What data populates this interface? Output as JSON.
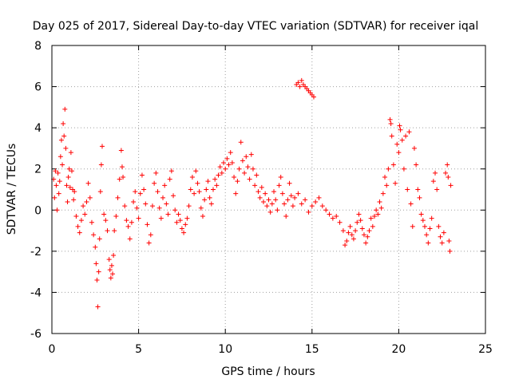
{
  "chart_data": {
    "type": "scatter",
    "title": "Day 025 of 2017, Sidereal Day-to-day VTEC variation (SDTVAR) for receiver iqal",
    "xlabel": "GPS time / hours",
    "ylabel": "SDTVAR / TECUs",
    "xlim": [
      0,
      25
    ],
    "ylim": [
      -6,
      8
    ],
    "xticks": [
      0,
      5,
      10,
      15,
      20,
      25
    ],
    "yticks": [
      -6,
      -4,
      -2,
      0,
      2,
      4,
      6,
      8
    ],
    "xtick_labels": [
      "0",
      "5",
      "10",
      "15",
      "20",
      "25"
    ],
    "ytick_labels": [
      "-6",
      "-4",
      "-2",
      "0",
      "2",
      "4",
      "6",
      "8"
    ],
    "grid": true,
    "marker": "+",
    "color": "#ff0000",
    "series": [
      {
        "name": "SDTVAR",
        "points": [
          [
            0.1,
            1.5
          ],
          [
            0.15,
            0.6
          ],
          [
            0.2,
            1.9
          ],
          [
            0.25,
            1.2
          ],
          [
            0.3,
            0.0
          ],
          [
            0.35,
            1.8
          ],
          [
            0.4,
            0.8
          ],
          [
            0.45,
            1.4
          ],
          [
            0.5,
            2.6
          ],
          [
            0.55,
            3.4
          ],
          [
            0.6,
            2.2
          ],
          [
            0.65,
            4.2
          ],
          [
            0.7,
            3.6
          ],
          [
            0.75,
            4.9
          ],
          [
            0.8,
            3.0
          ],
          [
            0.85,
            1.2
          ],
          [
            0.9,
            0.4
          ],
          [
            0.95,
            1.6
          ],
          [
            1.0,
            2.0
          ],
          [
            1.05,
            1.1
          ],
          [
            1.1,
            2.8
          ],
          [
            1.15,
            1.9
          ],
          [
            1.2,
            1.0
          ],
          [
            1.25,
            0.5
          ],
          [
            1.3,
            0.9
          ],
          [
            1.4,
            -0.3
          ],
          [
            1.5,
            -0.8
          ],
          [
            1.6,
            -1.1
          ],
          [
            1.7,
            -0.5
          ],
          [
            1.8,
            0.2
          ],
          [
            1.9,
            -0.2
          ],
          [
            2.0,
            0.4
          ],
          [
            2.1,
            1.3
          ],
          [
            2.2,
            0.6
          ],
          [
            2.3,
            -0.6
          ],
          [
            2.4,
            -1.2
          ],
          [
            2.5,
            -1.8
          ],
          [
            2.55,
            -2.6
          ],
          [
            2.6,
            -3.4
          ],
          [
            2.65,
            -4.7
          ],
          [
            2.7,
            -3.0
          ],
          [
            2.75,
            -1.4
          ],
          [
            2.8,
            0.9
          ],
          [
            2.85,
            2.2
          ],
          [
            2.9,
            3.1
          ],
          [
            3.0,
            -0.2
          ],
          [
            3.1,
            -0.5
          ],
          [
            3.2,
            -1.0
          ],
          [
            3.3,
            -2.4
          ],
          [
            3.35,
            -2.9
          ],
          [
            3.4,
            -3.3
          ],
          [
            3.45,
            -2.7
          ],
          [
            3.5,
            -3.1
          ],
          [
            3.55,
            -2.2
          ],
          [
            3.6,
            -1.0
          ],
          [
            3.7,
            -0.3
          ],
          [
            3.8,
            0.6
          ],
          [
            3.9,
            1.5
          ],
          [
            4.0,
            2.9
          ],
          [
            4.05,
            2.1
          ],
          [
            4.1,
            1.6
          ],
          [
            4.2,
            0.2
          ],
          [
            4.3,
            -0.5
          ],
          [
            4.4,
            -0.8
          ],
          [
            4.5,
            -1.4
          ],
          [
            4.6,
            -0.6
          ],
          [
            4.7,
            0.4
          ],
          [
            4.8,
            0.9
          ],
          [
            4.9,
            0.1
          ],
          [
            5.0,
            -0.4
          ],
          [
            5.1,
            0.8
          ],
          [
            5.2,
            1.7
          ],
          [
            5.3,
            1.0
          ],
          [
            5.4,
            0.3
          ],
          [
            5.5,
            -0.7
          ],
          [
            5.6,
            -1.6
          ],
          [
            5.7,
            -1.2
          ],
          [
            5.8,
            0.2
          ],
          [
            5.9,
            1.3
          ],
          [
            6.0,
            1.8
          ],
          [
            6.1,
            0.9
          ],
          [
            6.2,
            0.1
          ],
          [
            6.3,
            -0.4
          ],
          [
            6.4,
            0.6
          ],
          [
            6.5,
            1.2
          ],
          [
            6.6,
            0.3
          ],
          [
            6.7,
            -0.2
          ],
          [
            6.8,
            1.5
          ],
          [
            6.9,
            1.9
          ],
          [
            7.0,
            0.7
          ],
          [
            7.1,
            0.0
          ],
          [
            7.2,
            -0.6
          ],
          [
            7.3,
            -0.2
          ],
          [
            7.4,
            -0.5
          ],
          [
            7.5,
            -0.9
          ],
          [
            7.6,
            -1.1
          ],
          [
            7.7,
            -0.7
          ],
          [
            7.8,
            -0.4
          ],
          [
            7.9,
            0.2
          ],
          [
            8.0,
            1.0
          ],
          [
            8.1,
            1.6
          ],
          [
            8.2,
            0.8
          ],
          [
            8.3,
            1.9
          ],
          [
            8.4,
            1.3
          ],
          [
            8.5,
            0.9
          ],
          [
            8.6,
            0.1
          ],
          [
            8.7,
            -0.3
          ],
          [
            8.8,
            0.5
          ],
          [
            8.9,
            1.0
          ],
          [
            9.0,
            1.4
          ],
          [
            9.1,
            0.6
          ],
          [
            9.2,
            0.3
          ],
          [
            9.3,
            1.0
          ],
          [
            9.4,
            1.5
          ],
          [
            9.5,
            1.2
          ],
          [
            9.6,
            1.7
          ],
          [
            9.7,
            2.1
          ],
          [
            9.8,
            1.8
          ],
          [
            9.9,
            2.3
          ],
          [
            10.0,
            2.0
          ],
          [
            10.1,
            2.5
          ],
          [
            10.2,
            2.2
          ],
          [
            10.3,
            2.8
          ],
          [
            10.4,
            2.3
          ],
          [
            10.5,
            1.6
          ],
          [
            10.6,
            0.8
          ],
          [
            10.7,
            1.4
          ],
          [
            10.8,
            2.0
          ],
          [
            10.9,
            3.3
          ],
          [
            11.0,
            2.4
          ],
          [
            11.1,
            1.8
          ],
          [
            11.2,
            2.6
          ],
          [
            11.3,
            2.1
          ],
          [
            11.4,
            1.5
          ],
          [
            11.5,
            2.7
          ],
          [
            11.6,
            2.0
          ],
          [
            11.7,
            1.2
          ],
          [
            11.8,
            1.7
          ],
          [
            11.9,
            0.9
          ],
          [
            12.0,
            0.6
          ],
          [
            12.1,
            1.1
          ],
          [
            12.2,
            0.4
          ],
          [
            12.3,
            0.8
          ],
          [
            12.4,
            0.2
          ],
          [
            12.5,
            0.5
          ],
          [
            12.6,
            -0.1
          ],
          [
            12.7,
            0.3
          ],
          [
            12.8,
            0.9
          ],
          [
            12.9,
            0.5
          ],
          [
            13.0,
            0.0
          ],
          [
            13.1,
            1.2
          ],
          [
            13.2,
            1.6
          ],
          [
            13.3,
            0.8
          ],
          [
            13.4,
            0.3
          ],
          [
            13.5,
            -0.3
          ],
          [
            13.6,
            0.5
          ],
          [
            13.7,
            1.3
          ],
          [
            13.8,
            0.7
          ],
          [
            13.9,
            0.2
          ],
          [
            14.0,
            0.6
          ],
          [
            14.1,
            6.1
          ],
          [
            14.2,
            6.2
          ],
          [
            14.3,
            6.0
          ],
          [
            14.4,
            6.3
          ],
          [
            14.5,
            6.1
          ],
          [
            14.6,
            6.0
          ],
          [
            14.7,
            5.9
          ],
          [
            14.8,
            5.8
          ],
          [
            14.9,
            5.7
          ],
          [
            15.0,
            5.6
          ],
          [
            15.1,
            5.5
          ],
          [
            14.2,
            0.8
          ],
          [
            14.4,
            0.3
          ],
          [
            14.6,
            0.5
          ],
          [
            14.8,
            -0.1
          ],
          [
            15.0,
            0.2
          ],
          [
            15.2,
            0.4
          ],
          [
            15.4,
            0.6
          ],
          [
            15.6,
            0.2
          ],
          [
            15.8,
            0.0
          ],
          [
            16.0,
            -0.2
          ],
          [
            16.2,
            -0.4
          ],
          [
            16.4,
            -0.3
          ],
          [
            16.6,
            -0.6
          ],
          [
            16.8,
            -1.0
          ],
          [
            16.9,
            -1.7
          ],
          [
            17.0,
            -1.5
          ],
          [
            17.1,
            -1.1
          ],
          [
            17.2,
            -0.8
          ],
          [
            17.3,
            -1.2
          ],
          [
            17.4,
            -1.4
          ],
          [
            17.5,
            -1.0
          ],
          [
            17.6,
            -0.6
          ],
          [
            17.7,
            -0.2
          ],
          [
            17.8,
            -0.5
          ],
          [
            17.9,
            -0.9
          ],
          [
            18.0,
            -1.2
          ],
          [
            18.1,
            -1.6
          ],
          [
            18.2,
            -1.3
          ],
          [
            18.3,
            -1.0
          ],
          [
            18.4,
            -0.4
          ],
          [
            18.5,
            -0.8
          ],
          [
            18.6,
            -0.3
          ],
          [
            18.7,
            0.0
          ],
          [
            18.8,
            -0.2
          ],
          [
            18.9,
            0.4
          ],
          [
            19.0,
            0.1
          ],
          [
            19.1,
            0.8
          ],
          [
            19.2,
            1.6
          ],
          [
            19.3,
            1.2
          ],
          [
            19.4,
            2.0
          ],
          [
            19.5,
            4.4
          ],
          [
            19.55,
            4.2
          ],
          [
            19.6,
            3.6
          ],
          [
            19.7,
            2.2
          ],
          [
            19.8,
            1.3
          ],
          [
            19.9,
            3.2
          ],
          [
            20.0,
            2.8
          ],
          [
            20.05,
            4.1
          ],
          [
            20.1,
            3.9
          ],
          [
            20.2,
            3.4
          ],
          [
            20.3,
            2.0
          ],
          [
            20.4,
            3.6
          ],
          [
            20.5,
            1.0
          ],
          [
            20.6,
            3.8
          ],
          [
            20.7,
            0.3
          ],
          [
            20.8,
            -0.8
          ],
          [
            20.9,
            3.0
          ],
          [
            21.0,
            2.2
          ],
          [
            21.1,
            1.0
          ],
          [
            21.2,
            0.6
          ],
          [
            21.3,
            -0.2
          ],
          [
            21.4,
            -0.5
          ],
          [
            21.5,
            -0.8
          ],
          [
            21.6,
            -1.2
          ],
          [
            21.7,
            -1.6
          ],
          [
            21.8,
            -0.9
          ],
          [
            21.9,
            -0.4
          ],
          [
            22.0,
            1.4
          ],
          [
            22.1,
            1.8
          ],
          [
            22.2,
            1.0
          ],
          [
            22.3,
            -0.8
          ],
          [
            22.4,
            -1.3
          ],
          [
            22.5,
            -1.6
          ],
          [
            22.6,
            -1.1
          ],
          [
            22.7,
            1.8
          ],
          [
            22.8,
            2.2
          ],
          [
            22.85,
            1.6
          ],
          [
            22.9,
            -1.5
          ],
          [
            22.95,
            -2.0
          ],
          [
            23.0,
            1.2
          ]
        ]
      }
    ]
  }
}
